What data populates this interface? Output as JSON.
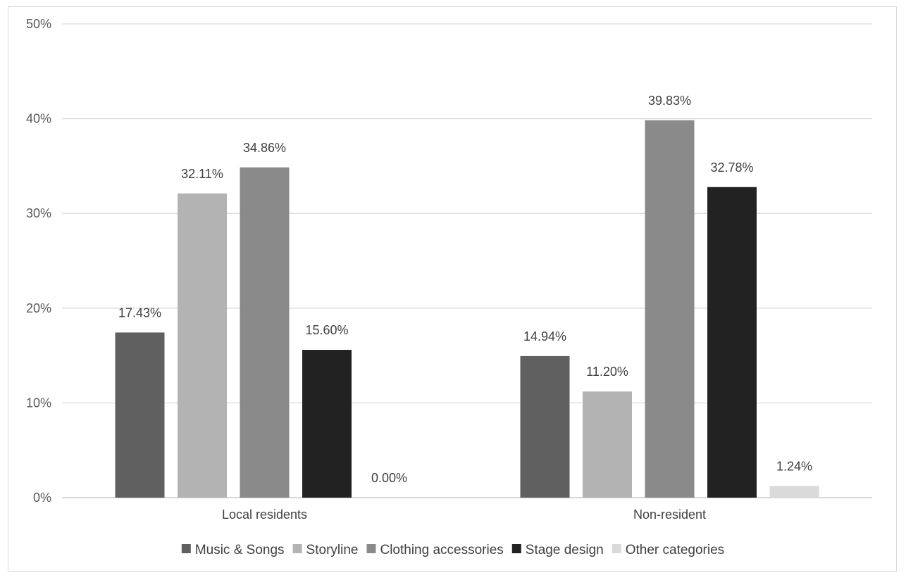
{
  "chart_data": {
    "type": "bar",
    "categories": [
      "Local residents",
      "Non-resident"
    ],
    "series": [
      {
        "name": "Music & Songs",
        "color": "#606060",
        "values": [
          17.43,
          14.94
        ],
        "labels": [
          "17.43%",
          "14.94%"
        ]
      },
      {
        "name": "Storyline",
        "color": "#b3b3b3",
        "values": [
          32.11,
          11.2
        ],
        "labels": [
          "32.11%",
          "11.20%"
        ]
      },
      {
        "name": "Clothing accessories",
        "color": "#8a8a8a",
        "values": [
          34.86,
          39.83
        ],
        "labels": [
          "34.86%",
          "39.83%"
        ]
      },
      {
        "name": "Stage design",
        "color": "#222222",
        "values": [
          15.6,
          32.78
        ],
        "labels": [
          "15.60%",
          "32.78%"
        ]
      },
      {
        "name": "Other categories",
        "color": "#dadada",
        "values": [
          0.0,
          1.24
        ],
        "labels": [
          "0.00%",
          "1.24%"
        ]
      }
    ],
    "yticks": [
      "0%",
      "10%",
      "20%",
      "30%",
      "40%",
      "50%"
    ],
    "ylim": [
      0,
      50
    ],
    "grid": true,
    "legend_position": "bottom"
  }
}
